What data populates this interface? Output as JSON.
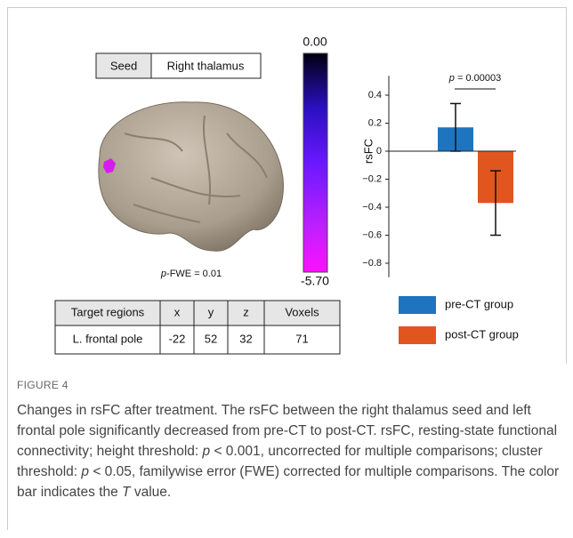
{
  "seed_table": {
    "header": "Seed",
    "value": "Right thalamus"
  },
  "colorbar": {
    "max_label": "0.00",
    "min_label": "-5.70"
  },
  "threshold_label": {
    "symbol": "p",
    "text": "-FWE = 0.01"
  },
  "target_table": {
    "headers": [
      "Target regions",
      "x",
      "y",
      "z",
      "Voxels"
    ],
    "rows": [
      [
        "L. frontal pole",
        "-22",
        "52",
        "32",
        "71"
      ]
    ]
  },
  "chart_data": {
    "type": "bar",
    "ylabel": "rsFC",
    "annotation": {
      "symbol": "p",
      "text": " = 0.00003"
    },
    "categories": [
      null
    ],
    "series": [
      {
        "name": "pre-CT group",
        "color": "#1f74c0",
        "values": [
          0.17
        ],
        "errors": [
          0.17
        ]
      },
      {
        "name": "post-CT group",
        "color": "#e0561e",
        "values": [
          -0.37
        ],
        "errors": [
          0.23
        ]
      }
    ],
    "ylim": [
      -0.9,
      0.5
    ],
    "yticks": [
      0.4,
      0.2,
      0,
      {
        "value": -0.2,
        "label": "−0.2"
      },
      {
        "value": -0.4,
        "label": "−0.4"
      },
      {
        "value": -0.6,
        "label": "−0.6"
      },
      {
        "value": -0.8,
        "label": "−0.8"
      }
    ]
  },
  "figure": {
    "label": "FIGURE 4",
    "caption": [
      "Changes in rsFC after treatment. The rsFC between the right thalamus seed and left frontal pole significantly decreased from pre-CT to post-CT. rsFC, resting-state functional connectivity; height threshold: ",
      "p",
      " < 0.001, uncorrected for multiple comparisons; cluster threshold: ",
      "p",
      " < 0.05, familywise error (FWE) corrected for multiple comparisons. The color bar indicates the ",
      "T",
      " value."
    ]
  }
}
